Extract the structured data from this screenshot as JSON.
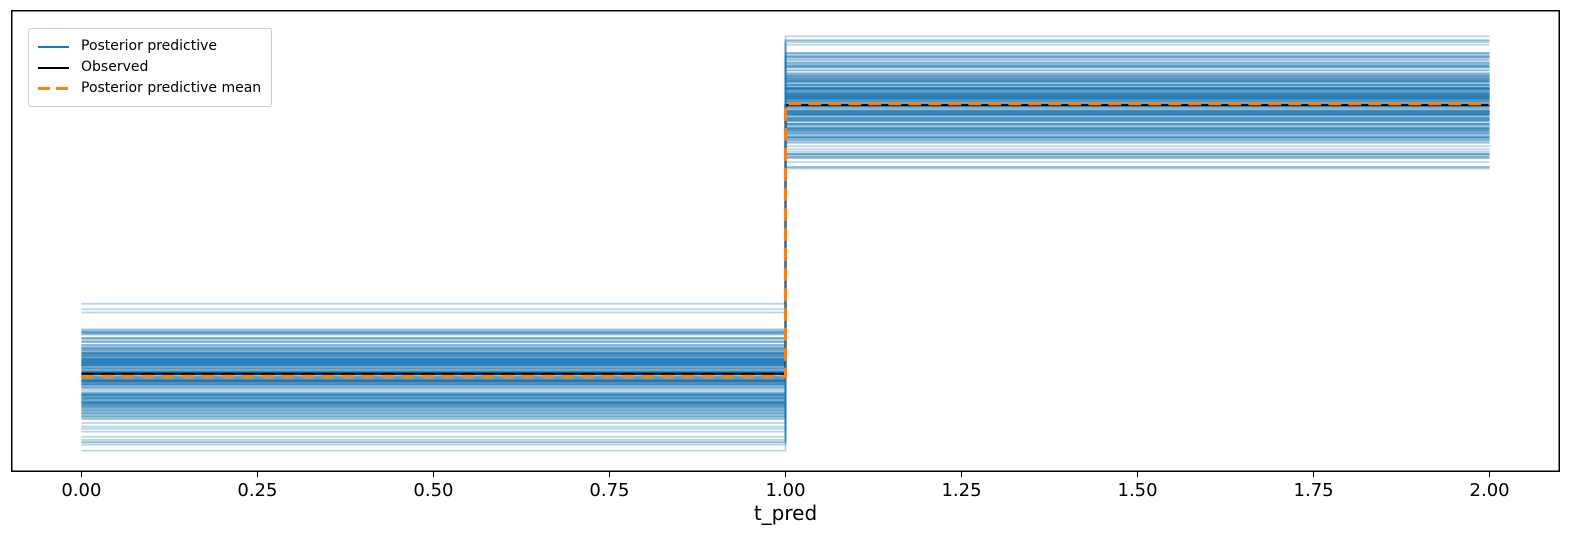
{
  "figure": {
    "background": "#ffffff"
  },
  "legend": {
    "position": "upper-left",
    "items": [
      {
        "label": "Posterior predictive",
        "color": "#1f77b4",
        "line_style": "solid",
        "line_width": 2
      },
      {
        "label": "Observed",
        "color": "#000000",
        "line_style": "solid",
        "line_width": 2
      },
      {
        "label": "Posterior predictive mean",
        "color": "#ff7f0e",
        "line_style": "dashed",
        "line_width": 3.5
      }
    ]
  },
  "chart_data": {
    "type": "line",
    "subtype": "posterior-predictive-step-plot",
    "title": "",
    "xlabel": "t_pred",
    "ylabel": "",
    "grid": false,
    "xlim": [
      -0.1,
      2.1
    ],
    "x_ticks": [
      0,
      0.25,
      0.5,
      0.75,
      1,
      1.25,
      1.5,
      1.75,
      2
    ],
    "x_tick_labels": [
      "0.00",
      "0.25",
      "0.50",
      "0.75",
      "1.00",
      "1.25",
      "1.50",
      "1.75",
      "2.00"
    ],
    "y_ticks": [],
    "y_units": "axes-fraction (figure shows no y tick labels)",
    "series": [
      {
        "name": "Observed",
        "color": "#000000",
        "style": "solid",
        "width": 2.2,
        "x": [
          0,
          1,
          1,
          2
        ],
        "y_frac": [
          0.213,
          0.213,
          0.794,
          0.794
        ]
      },
      {
        "name": "Posterior predictive mean",
        "color": "#ff7f0e",
        "style": "dashed",
        "width": 3.2,
        "dash": [
          13,
          7
        ],
        "x": [
          0,
          1,
          1,
          2
        ],
        "y_frac": [
          0.206,
          0.206,
          0.797,
          0.797
        ]
      }
    ],
    "posterior_predictive_samples": {
      "name": "Posterior predictive",
      "color": "#1f77b4",
      "count": 200,
      "alpha": 0.3,
      "width": 1.8,
      "seed": 1337,
      "step_x": [
        0,
        1,
        2
      ],
      "segments": [
        {
          "x_range": [
            0,
            1
          ],
          "center_frac": 0.208,
          "sigma_frac": 0.062,
          "min_frac": 0.041,
          "max_frac": 0.372
        },
        {
          "x_range": [
            1,
            2
          ],
          "center_frac": 0.798,
          "sigma_frac": 0.059,
          "min_frac": 0.639,
          "max_frac": 0.957
        }
      ]
    }
  }
}
